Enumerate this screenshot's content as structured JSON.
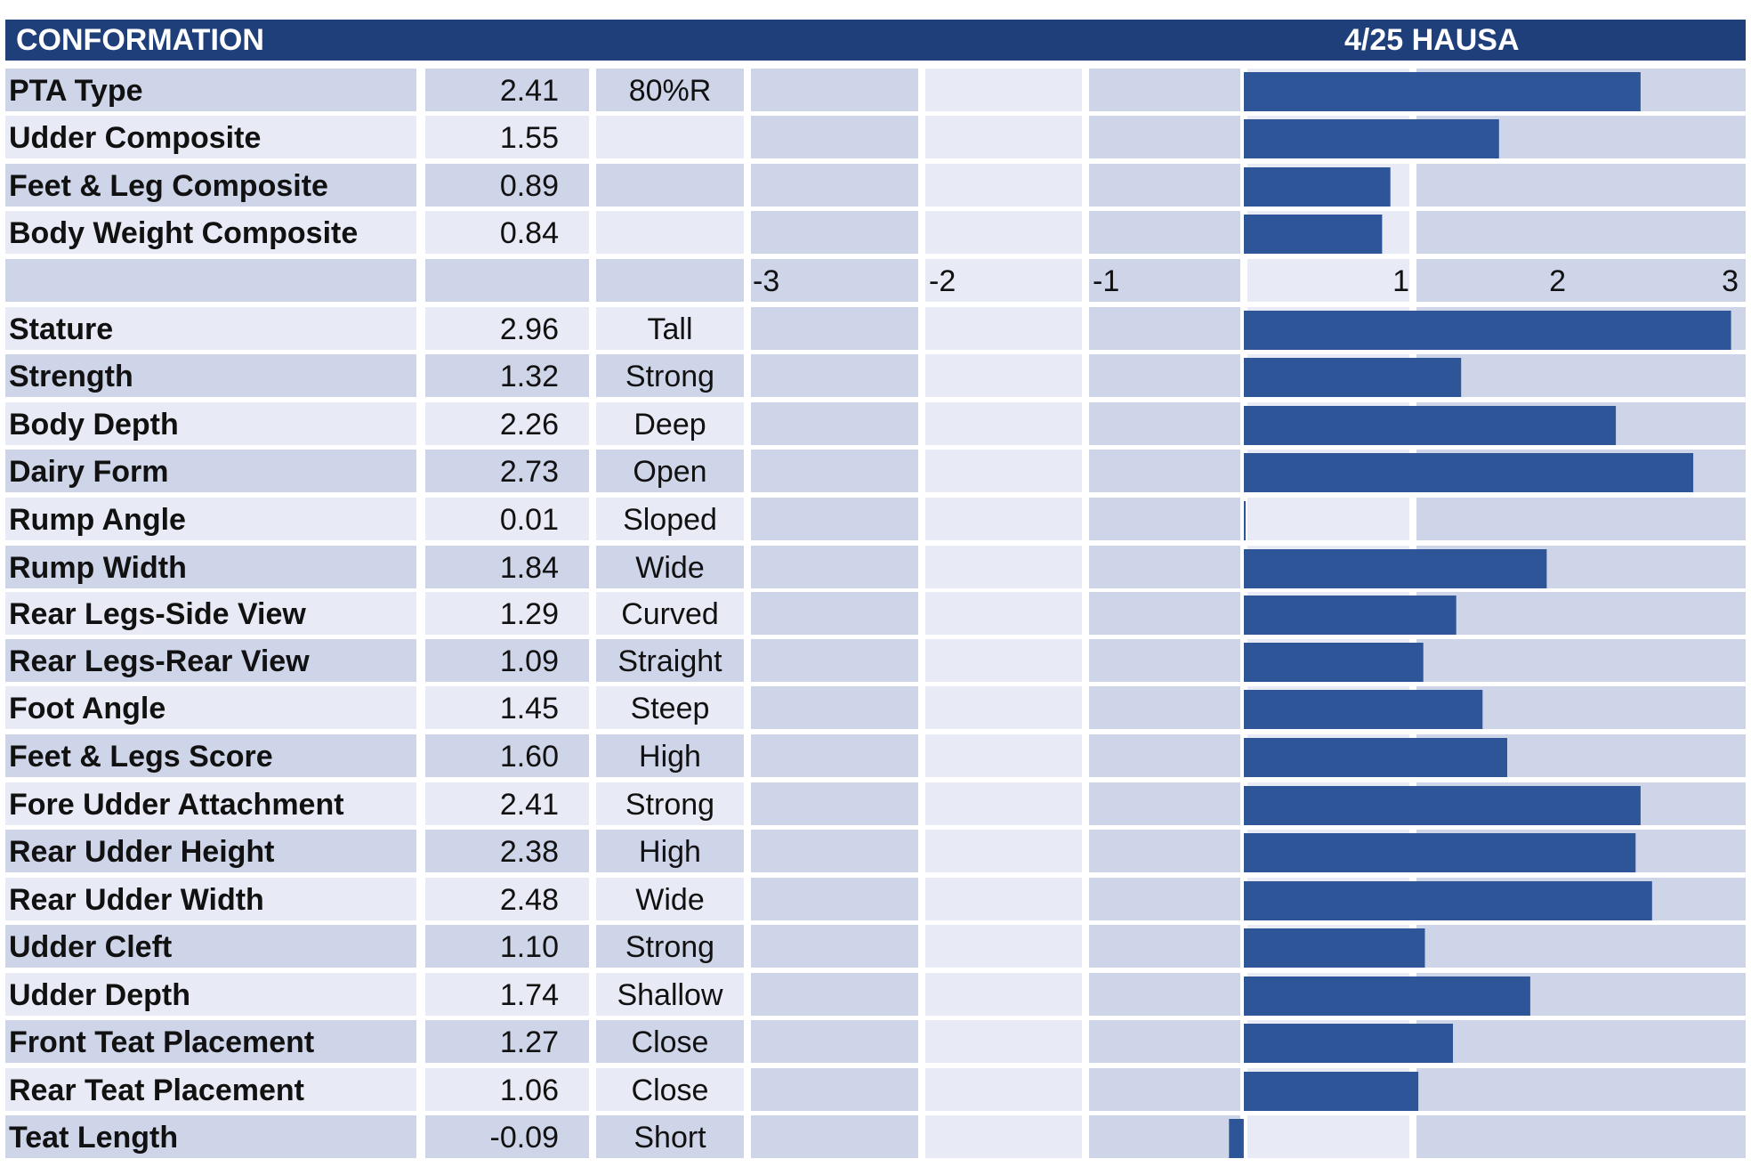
{
  "header": {
    "title": "CONFORMATION",
    "source": "4/25 HAUSA"
  },
  "colors": {
    "header_bg": "#1f3f7b",
    "bar": "#2e5597",
    "row_dark": "#cfd5e9",
    "row_light": "#e8ebf5"
  },
  "chart_data": {
    "type": "bar",
    "orientation": "horizontal",
    "xlim": [
      -3,
      3
    ],
    "tick_labels": [
      "-3",
      "-2",
      "-1",
      "1",
      "2",
      "3"
    ],
    "composites": [
      {
        "label": "PTA Type",
        "value": 2.41,
        "display": "2.41",
        "note": "80%R"
      },
      {
        "label": "Udder Composite",
        "value": 1.55,
        "display": "1.55",
        "note": ""
      },
      {
        "label": "Feet & Leg Composite",
        "value": 0.89,
        "display": "0.89",
        "note": ""
      },
      {
        "label": "Body Weight Composite",
        "value": 0.84,
        "display": "0.84",
        "note": ""
      }
    ],
    "traits": [
      {
        "label": "Stature",
        "value": 2.96,
        "display": "2.96",
        "descriptor": "Tall"
      },
      {
        "label": "Strength",
        "value": 1.32,
        "display": "1.32",
        "descriptor": "Strong"
      },
      {
        "label": "Body Depth",
        "value": 2.26,
        "display": "2.26",
        "descriptor": "Deep"
      },
      {
        "label": "Dairy Form",
        "value": 2.73,
        "display": "2.73",
        "descriptor": "Open"
      },
      {
        "label": "Rump Angle",
        "value": 0.01,
        "display": "0.01",
        "descriptor": "Sloped"
      },
      {
        "label": "Rump Width",
        "value": 1.84,
        "display": "1.84",
        "descriptor": "Wide"
      },
      {
        "label": "Rear Legs-Side View",
        "value": 1.29,
        "display": "1.29",
        "descriptor": "Curved"
      },
      {
        "label": "Rear Legs-Rear View",
        "value": 1.09,
        "display": "1.09",
        "descriptor": "Straight"
      },
      {
        "label": "Foot Angle",
        "value": 1.45,
        "display": "1.45",
        "descriptor": "Steep"
      },
      {
        "label": "Feet & Legs Score",
        "value": 1.6,
        "display": "1.60",
        "descriptor": "High"
      },
      {
        "label": "Fore Udder Attachment",
        "value": 2.41,
        "display": "2.41",
        "descriptor": "Strong"
      },
      {
        "label": "Rear Udder Height",
        "value": 2.38,
        "display": "2.38",
        "descriptor": "High"
      },
      {
        "label": "Rear Udder Width",
        "value": 2.48,
        "display": "2.48",
        "descriptor": "Wide"
      },
      {
        "label": "Udder Cleft",
        "value": 1.1,
        "display": "1.10",
        "descriptor": "Strong"
      },
      {
        "label": "Udder Depth",
        "value": 1.74,
        "display": "1.74",
        "descriptor": "Shallow"
      },
      {
        "label": "Front Teat Placement",
        "value": 1.27,
        "display": "1.27",
        "descriptor": "Close"
      },
      {
        "label": "Rear Teat Placement",
        "value": 1.06,
        "display": "1.06",
        "descriptor": "Close"
      },
      {
        "label": "Teat Length",
        "value": -0.09,
        "display": "-0.09",
        "descriptor": "Short"
      }
    ]
  }
}
